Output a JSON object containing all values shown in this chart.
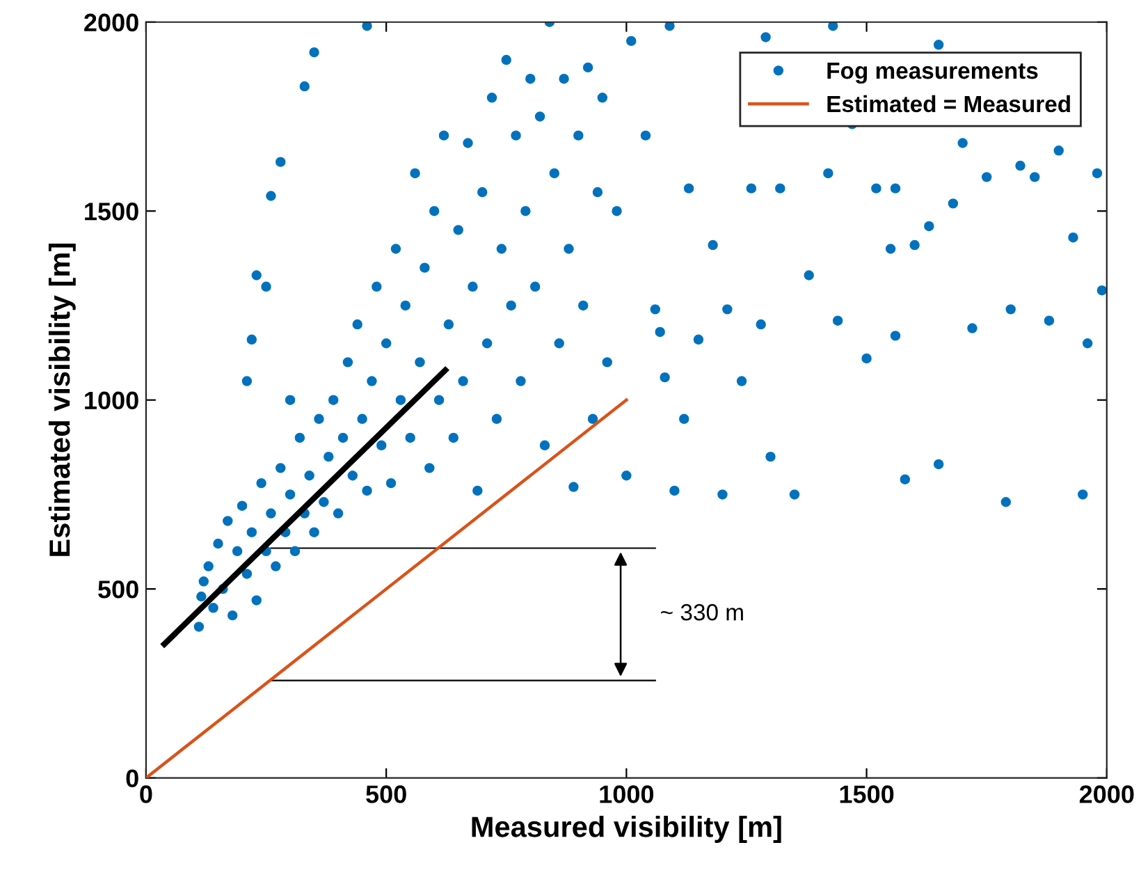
{
  "chart_data": {
    "type": "scatter",
    "xlabel": "Measured visibility [m]",
    "ylabel": "Estimated visibility [m]",
    "xlim": [
      0,
      2000
    ],
    "ylim": [
      0,
      2000
    ],
    "xticks": [
      0,
      500,
      1000,
      1500,
      2000
    ],
    "yticks": [
      0,
      500,
      1000,
      1500,
      2000
    ],
    "grid": false,
    "legend": "top right",
    "series": [
      {
        "name": "Fog measurements",
        "marker": "circle",
        "color": "#0072bd",
        "x": [
          110,
          115,
          120,
          130,
          140,
          150,
          160,
          170,
          180,
          190,
          200,
          210,
          220,
          230,
          240,
          250,
          260,
          270,
          280,
          290,
          300,
          310,
          320,
          330,
          340,
          350,
          360,
          370,
          380,
          390,
          400,
          410,
          420,
          430,
          440,
          450,
          460,
          470,
          480,
          490,
          500,
          510,
          520,
          530,
          540,
          550,
          560,
          570,
          580,
          590,
          600,
          610,
          620,
          630,
          640,
          650,
          660,
          670,
          680,
          690,
          700,
          710,
          720,
          730,
          740,
          750,
          760,
          770,
          780,
          790,
          800,
          810,
          820,
          830,
          840,
          850,
          860,
          870,
          880,
          890,
          900,
          910,
          920,
          930,
          940,
          950,
          960,
          980,
          1000,
          1010,
          210,
          220,
          230,
          260,
          280,
          330,
          350,
          460,
          300,
          250,
          1040,
          1060,
          1070,
          1080,
          1090,
          1100,
          1120,
          1130,
          1150,
          1180,
          1200,
          1210,
          1240,
          1260,
          1280,
          1290,
          1300,
          1320,
          1350,
          1380,
          1420,
          1440,
          1470,
          1500,
          1520,
          1550,
          1560,
          1580,
          1600,
          1630,
          1650,
          1680,
          1700,
          1720,
          1750,
          1790,
          1800,
          1820,
          1850,
          1880,
          1900,
          1930,
          1950,
          1960,
          1980,
          1990,
          1430,
          1650,
          1560
        ],
        "values": [
          400,
          480,
          520,
          560,
          450,
          620,
          500,
          680,
          430,
          600,
          720,
          540,
          650,
          470,
          780,
          600,
          700,
          560,
          820,
          650,
          750,
          600,
          900,
          700,
          800,
          650,
          950,
          730,
          850,
          1000,
          700,
          900,
          1100,
          800,
          1200,
          950,
          760,
          1050,
          1300,
          880,
          1150,
          780,
          1400,
          1000,
          1250,
          900,
          1600,
          1100,
          1350,
          820,
          1500,
          1000,
          1700,
          1200,
          900,
          1450,
          1050,
          1680,
          1300,
          760,
          1550,
          1150,
          1800,
          950,
          1400,
          1900,
          1250,
          1700,
          1050,
          1500,
          1850,
          1300,
          1750,
          880,
          2000,
          1600,
          1150,
          1850,
          1400,
          770,
          1700,
          1250,
          1880,
          950,
          1550,
          1800,
          1100,
          1500,
          800,
          1950,
          1050,
          1160,
          1330,
          1540,
          1630,
          1830,
          1920,
          1990,
          1000,
          1300,
          1700,
          1240,
          1180,
          1060,
          1990,
          760,
          950,
          1560,
          1160,
          1410,
          750,
          1240,
          1050,
          1560,
          1200,
          1960,
          850,
          1560,
          750,
          1330,
          1600,
          1210,
          1730,
          1110,
          1560,
          1400,
          1170,
          790,
          1410,
          1460,
          830,
          1520,
          1680,
          1190,
          1590,
          730,
          1240,
          1620,
          1590,
          1210,
          1660,
          1430,
          750,
          1150,
          1600,
          1290,
          1990,
          1940,
          1560
        ]
      },
      {
        "name": "Estimated = Measured",
        "type": "line",
        "color": "#d95319",
        "x": [
          0,
          1000
        ],
        "values": [
          0,
          1000
        ]
      },
      {
        "type": "line",
        "color": "#000000",
        "x": [
          38,
          623
        ],
        "values": [
          354,
          1079
        ]
      }
    ],
    "ref_lines": [
      {
        "axis": "y",
        "value": 608,
        "color": "#000000"
      },
      {
        "axis": "y",
        "value": 258,
        "color": "#000000"
      }
    ],
    "annotations": [
      "~ 330 m"
    ]
  }
}
